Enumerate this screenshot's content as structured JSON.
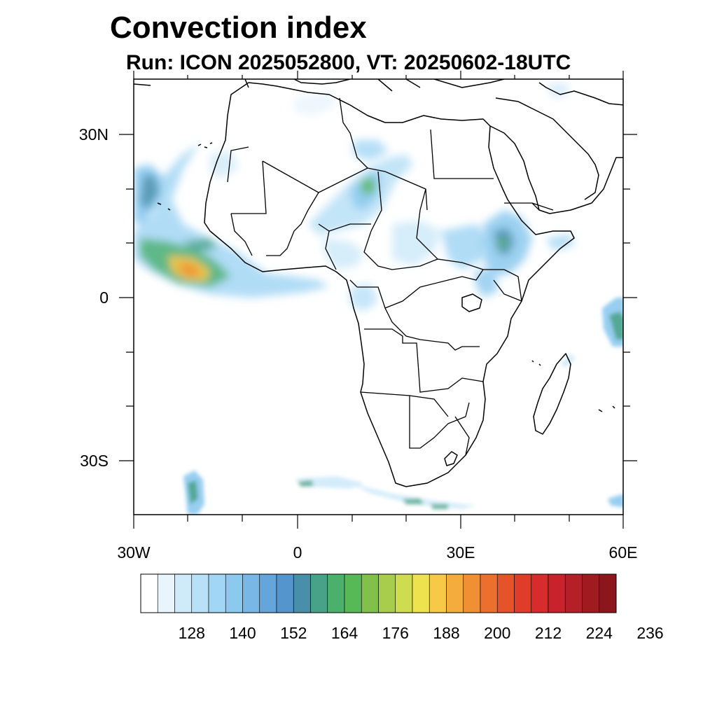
{
  "title": "Convection index",
  "subtitle": "Run: ICON 2025052800,  VT: 20250602-18UTC",
  "axes": {
    "lat_labels": [
      "30N",
      "0",
      "30S"
    ],
    "lon_labels": [
      "30W",
      "0",
      "30E",
      "60E"
    ],
    "lat_range": [
      -40,
      40
    ],
    "lon_range": [
      -30,
      60
    ]
  },
  "colorbar": {
    "labels": [
      "128",
      "140",
      "152",
      "164",
      "176",
      "188",
      "200",
      "212",
      "224",
      "236"
    ],
    "colors": [
      "#ffffff",
      "#e8f5fd",
      "#cfeaf9",
      "#b8e0f7",
      "#a2d6f5",
      "#8cc9ef",
      "#78b7e6",
      "#64a5dc",
      "#5495cd",
      "#4a8fa9",
      "#48a287",
      "#4ab06c",
      "#57b856",
      "#82c04c",
      "#a8cc4b",
      "#cfdc4f",
      "#efe24f",
      "#f7c946",
      "#f4ad3c",
      "#f18f35",
      "#ec6f2e",
      "#e55429",
      "#df3d2a",
      "#d72b2c",
      "#c8232c",
      "#b51f28",
      "#a01b20",
      "#8b171c"
    ]
  }
}
